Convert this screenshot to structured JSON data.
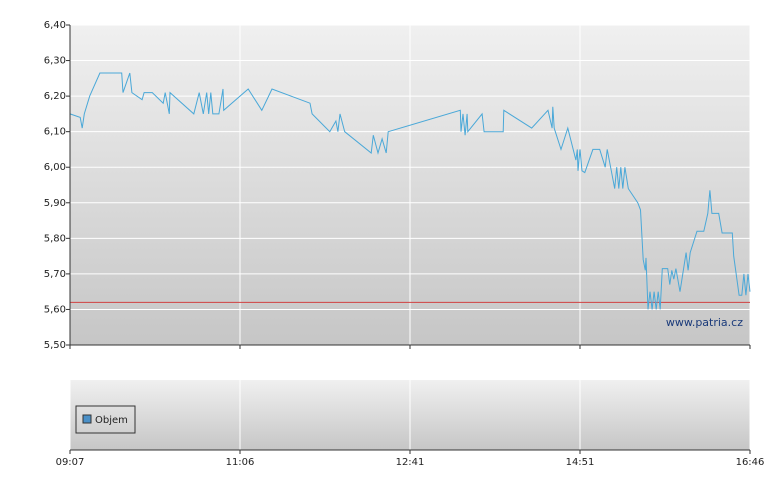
{
  "chart_data": [
    {
      "type": "line",
      "color": "#4aa8d8",
      "x": [
        0,
        1.5,
        1.8,
        2.1,
        2.9,
        4.4,
        7.6,
        7.8,
        8.8,
        9.1,
        10.6,
        10.9,
        12.1,
        13.7,
        14,
        14.6,
        14.7,
        18.2,
        19,
        19.6,
        20.1,
        20.4,
        20.7,
        21,
        21.9,
        22.5,
        22.6,
        26.2,
        28.2,
        29.7,
        35.3,
        35.6,
        38.2,
        39.1,
        39.4,
        39.7,
        40.4,
        44.3,
        44.6,
        45.3,
        45.9,
        46.5,
        46.8,
        57.4,
        57.5,
        57.8,
        58.1,
        58.4,
        58.5,
        60.6,
        60.9,
        63.7,
        63.8,
        67.9,
        70.3,
        70.9,
        71,
        71.2,
        72.2,
        73.2,
        74.4,
        74.6,
        74.7,
        75,
        75.3,
        75.7,
        76.9,
        77.9,
        78.7,
        79,
        79.6,
        80.1,
        80.4,
        80.7,
        81,
        81.3,
        81.6,
        82.1,
        83.5,
        83.9,
        84.3,
        84.6,
        84.7,
        85,
        85.3,
        85.6,
        85.9,
        86.2,
        86.5,
        86.8,
        87.1,
        87.9,
        88.2,
        88.5,
        88.8,
        89.1,
        89.7,
        90.6,
        90.9,
        91.2,
        92.2,
        93.2,
        93.8,
        94.1,
        94.4,
        95.4,
        95.9,
        97.4,
        97.6,
        98.4,
        98.8,
        99.1,
        99.4,
        99.7,
        100
      ],
      "values": [
        6.15,
        6.14,
        6.11,
        6.15,
        6.2,
        6.265,
        6.265,
        6.21,
        6.265,
        6.21,
        6.19,
        6.21,
        6.21,
        6.18,
        6.21,
        6.15,
        6.21,
        6.15,
        6.21,
        6.15,
        6.21,
        6.15,
        6.21,
        6.15,
        6.15,
        6.22,
        6.16,
        6.22,
        6.16,
        6.22,
        6.18,
        6.15,
        6.1,
        6.13,
        6.1,
        6.15,
        6.1,
        6.04,
        6.09,
        6.04,
        6.08,
        6.04,
        6.1,
        6.16,
        6.1,
        6.15,
        6.09,
        6.15,
        6.1,
        6.15,
        6.1,
        6.1,
        6.16,
        6.11,
        6.16,
        6.11,
        6.17,
        6.11,
        6.05,
        6.11,
        6.02,
        6.05,
        5.99,
        6.05,
        5.99,
        5.985,
        6.05,
        6.05,
        6,
        6.05,
        5.99,
        5.94,
        6,
        5.94,
        6,
        5.94,
        6,
        5.94,
        5.9,
        5.88,
        5.74,
        5.71,
        5.745,
        5.6,
        5.65,
        5.6,
        5.65,
        5.6,
        5.65,
        5.6,
        5.715,
        5.715,
        5.67,
        5.71,
        5.685,
        5.715,
        5.65,
        5.76,
        5.71,
        5.76,
        5.82,
        5.82,
        5.87,
        5.935,
        5.87,
        5.87,
        5.815,
        5.815,
        5.75,
        5.64,
        5.64,
        5.7,
        5.64,
        5.7,
        5.65
      ],
      "reference_line": 5.62,
      "reference_color": "#d04040",
      "xlim": [
        0,
        100
      ],
      "xticks": [
        {
          "value": 0,
          "label": "09:07"
        },
        {
          "value": 25,
          "label": "11:06"
        },
        {
          "value": 50,
          "label": "12:41"
        },
        {
          "value": 75,
          "label": "14:51"
        },
        {
          "value": 100,
          "label": "16:46"
        }
      ],
      "ylim": [
        5.5,
        6.4
      ],
      "yticks": [
        {
          "value": 5.5,
          "label": "5,50"
        },
        {
          "value": 5.6,
          "label": "5,60"
        },
        {
          "value": 5.7,
          "label": "5,70"
        },
        {
          "value": 5.8,
          "label": "5,80"
        },
        {
          "value": 5.9,
          "label": "5,90"
        },
        {
          "value": 6.0,
          "label": "6,00"
        },
        {
          "value": 6.1,
          "label": "6,10"
        },
        {
          "value": 6.2,
          "label": "6,20"
        },
        {
          "value": 6.3,
          "label": "6,30"
        },
        {
          "value": 6.4,
          "label": "6,40"
        }
      ],
      "grid": true,
      "watermark": "www.patria.cz"
    },
    {
      "type": "bar",
      "series": [
        {
          "name": "Objem",
          "color": "#4a90c8",
          "values": []
        }
      ]
    }
  ]
}
